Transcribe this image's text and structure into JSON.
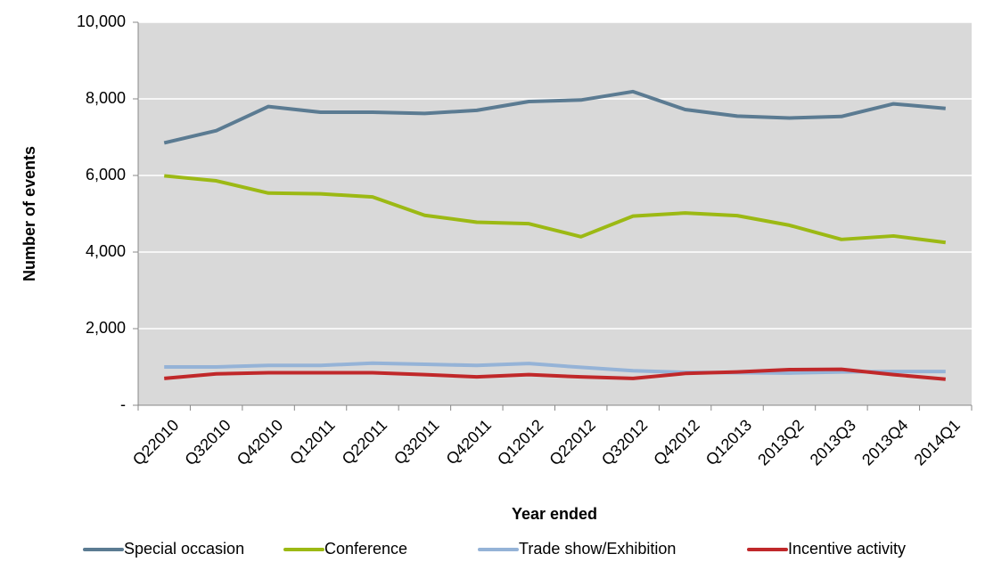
{
  "chart_data": {
    "type": "line",
    "x_label": "Year ended",
    "y_label": "Number of events",
    "categories": [
      "Q22010",
      "Q32010",
      "Q42010",
      "Q12011",
      "Q22011",
      "Q32011",
      "Q42011",
      "Q12012",
      "Q22012",
      "Q32012",
      "Q42012",
      "Q12013",
      "2013Q2",
      "2013Q3",
      "2013Q4",
      "2014Q1"
    ],
    "series": [
      {
        "name": "Special occasion",
        "color": "#5b7b92",
        "values": [
          6850,
          7170,
          7800,
          7650,
          7650,
          7620,
          7700,
          7930,
          7970,
          8190,
          7720,
          7550,
          7500,
          7540,
          7870,
          7750
        ]
      },
      {
        "name": "Conference",
        "color": "#9cb914",
        "values": [
          5990,
          5860,
          5540,
          5520,
          5440,
          4960,
          4780,
          4740,
          4400,
          4940,
          5020,
          4950,
          4700,
          4330,
          4420,
          4250
        ]
      },
      {
        "name": "Trade show/Exhibition",
        "color": "#95b3d7",
        "values": [
          1000,
          1000,
          1040,
          1040,
          1100,
          1070,
          1040,
          1090,
          990,
          900,
          860,
          850,
          840,
          870,
          880,
          880
        ]
      },
      {
        "name": "Incentive activity",
        "color": "#c0282a",
        "values": [
          700,
          820,
          850,
          850,
          850,
          800,
          740,
          800,
          740,
          700,
          830,
          870,
          930,
          940,
          800,
          680
        ]
      }
    ],
    "ylim": [
      0,
      10000
    ],
    "yticks": [
      {
        "value": 0,
        "label": "-"
      },
      {
        "value": 2000,
        "label": "2,000"
      },
      {
        "value": 4000,
        "label": "4,000"
      },
      {
        "value": 6000,
        "label": "6,000"
      },
      {
        "value": 8000,
        "label": "8,000"
      },
      {
        "value": 10000,
        "label": "10,000"
      }
    ],
    "grid": true,
    "legend": "bottom"
  }
}
